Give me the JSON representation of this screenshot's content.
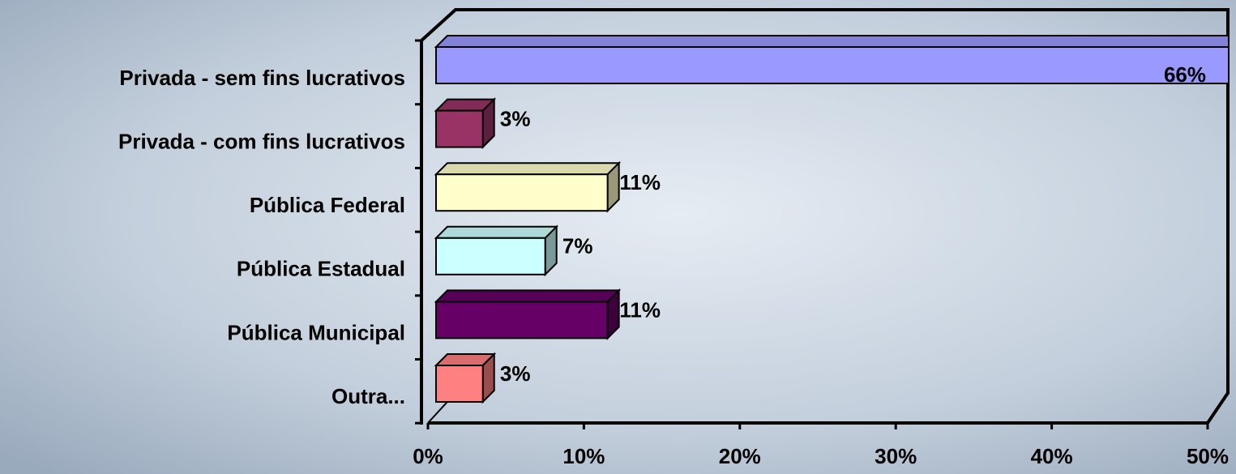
{
  "chart_data": {
    "type": "bar",
    "orientation": "horizontal",
    "categories": [
      "Privada - sem fins lucrativos",
      "Privada - com fins lucrativos",
      "Pública Federal",
      "Pública Estadual",
      "Pública Municipal",
      "Outra..."
    ],
    "values": [
      66,
      3,
      11,
      7,
      11,
      3
    ],
    "value_labels": [
      "66%",
      "3%",
      "11%",
      "7%",
      "11%",
      "3%"
    ],
    "colors": [
      "#9999ff",
      "#993366",
      "#ffffcc",
      "#ccffff",
      "#660066",
      "#ff8080"
    ],
    "xlim": [
      0,
      50
    ],
    "xticks": [
      {
        "value": 0,
        "label": "0%"
      },
      {
        "value": 10,
        "label": "10%"
      },
      {
        "value": 20,
        "label": "20%"
      },
      {
        "value": 30,
        "label": "30%"
      },
      {
        "value": 40,
        "label": "40%"
      },
      {
        "value": 50,
        "label": "50%"
      }
    ]
  }
}
